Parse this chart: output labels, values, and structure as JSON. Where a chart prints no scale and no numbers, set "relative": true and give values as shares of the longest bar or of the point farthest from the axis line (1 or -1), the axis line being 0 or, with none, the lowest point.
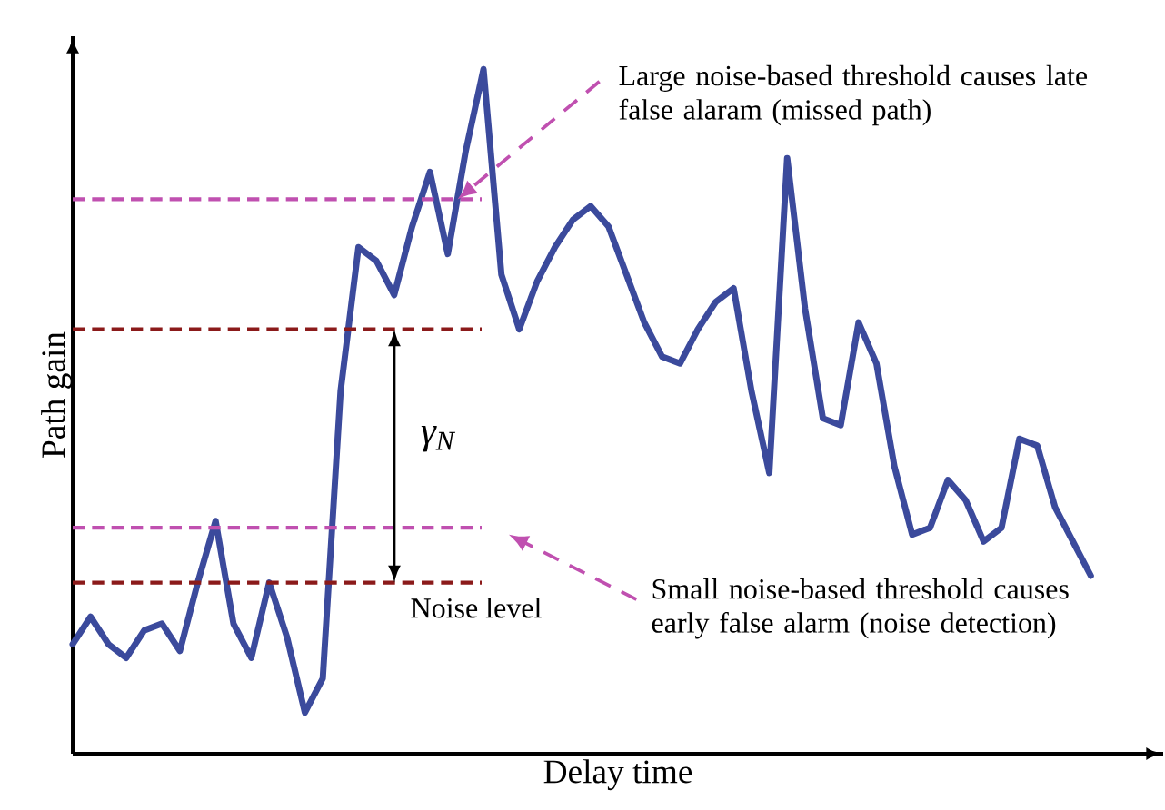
{
  "chart_data": {
    "type": "line",
    "relative": true,
    "xlabel": "Delay time",
    "ylabel": "Path gain",
    "categories": [
      null,
      null,
      null,
      null,
      null,
      null,
      null,
      null,
      null,
      null,
      null,
      null,
      null,
      null,
      null,
      null,
      null,
      null,
      null,
      null,
      null,
      null,
      null,
      null,
      null,
      null,
      null,
      null,
      null,
      null,
      null,
      null,
      null,
      null,
      null,
      null,
      null,
      null,
      null,
      null,
      null,
      null,
      null,
      null,
      null,
      null,
      null,
      null,
      null,
      null,
      null,
      null,
      null,
      null,
      null,
      null,
      null,
      null
    ],
    "tick_labels": false,
    "marker": "none",
    "line_style": "solid",
    "series": [
      {
        "color": "#3b4a9c",
        "values": [
          0.16,
          0.2,
          0.16,
          0.14,
          0.18,
          0.19,
          0.15,
          0.25,
          0.34,
          0.19,
          0.14,
          0.25,
          0.17,
          0.06,
          0.11,
          0.53,
          0.74,
          0.72,
          0.67,
          0.77,
          0.85,
          0.73,
          0.88,
          1.0,
          0.7,
          0.62,
          0.69,
          0.74,
          0.78,
          0.8,
          0.77,
          0.7,
          0.63,
          0.58,
          0.57,
          0.62,
          0.66,
          0.68,
          0.53,
          0.41,
          0.87,
          0.65,
          0.49,
          0.48,
          0.63,
          0.57,
          0.42,
          0.32,
          0.33,
          0.4,
          0.37,
          0.31,
          0.33,
          0.46,
          0.45,
          0.36,
          0.31,
          0.26
        ]
      }
    ],
    "ref_lines": [
      {
        "axis": "y",
        "value": 0.81,
        "color": "#c050b0",
        "line_style": "dashed"
      },
      {
        "axis": "y",
        "value": 0.62,
        "color": "#8b1a1a",
        "line_style": "dashed"
      },
      {
        "axis": "y",
        "value": 0.33,
        "color": "#c050b0",
        "line_style": "dashed"
      },
      {
        "axis": "y",
        "value": 0.25,
        "color": "#8b1a1a",
        "line_style": "dashed",
        "label": "Noise level"
      }
    ],
    "annotations": [
      "Large noise-based threshold causes late false alaram (missed path)",
      "Small noise-based threshold causes early false alarm (noise detection)",
      "γ$_{N}$"
    ]
  }
}
